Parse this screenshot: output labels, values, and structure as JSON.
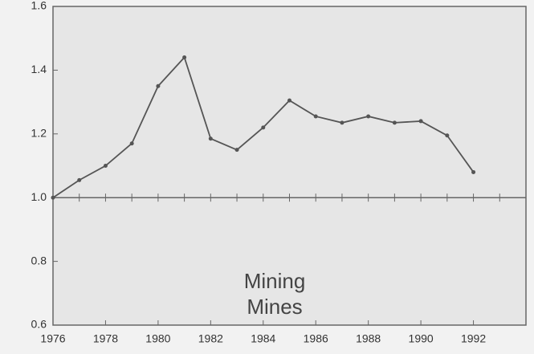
{
  "chart_data": {
    "type": "line",
    "annotations": [
      "Mining",
      "Mines"
    ],
    "x": [
      1976,
      1977,
      1978,
      1979,
      1980,
      1981,
      1982,
      1983,
      1984,
      1985,
      1986,
      1987,
      1988,
      1989,
      1990,
      1991,
      1992
    ],
    "series": [
      {
        "color": "#555555",
        "values": [
          1.0,
          1.055,
          1.1,
          1.17,
          1.35,
          1.44,
          1.185,
          1.15,
          1.22,
          1.305,
          1.255,
          1.235,
          1.255,
          1.235,
          1.24,
          1.195,
          1.08
        ]
      }
    ],
    "xlim": [
      1976,
      1994
    ],
    "xticks": [
      1976,
      1978,
      1980,
      1982,
      1984,
      1986,
      1988,
      1990,
      1992
    ],
    "ylim": [
      0.6,
      1.6
    ],
    "yticks": [
      0.6,
      0.8,
      {
        "value": 1,
        "label": "1.0"
      },
      1.2,
      1.4,
      1.6
    ],
    "reference_line": 1,
    "grid": false
  }
}
